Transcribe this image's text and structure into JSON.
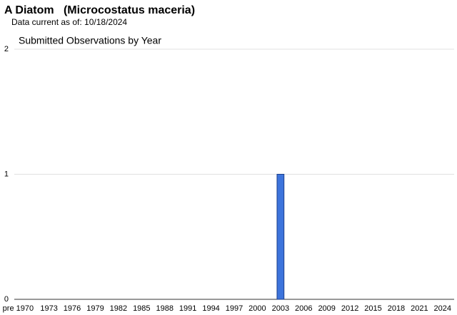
{
  "chart_data": {
    "type": "bar",
    "title": "A Diatom   (Microcostatus maceria)",
    "subtitle": "Data current as of: 10/18/2024",
    "chart_title": "Submitted Observations by Year",
    "categories": [
      "pre 1970",
      null,
      null,
      null,
      "1973",
      null,
      null,
      "1976",
      null,
      null,
      "1979",
      null,
      null,
      "1982",
      null,
      null,
      "1985",
      null,
      null,
      "1988",
      null,
      null,
      "1991",
      null,
      null,
      "1994",
      null,
      null,
      "1997",
      null,
      null,
      "2000",
      null,
      null,
      "2003",
      null,
      null,
      "2006",
      null,
      null,
      "2009",
      null,
      null,
      "2012",
      null,
      null,
      "2015",
      null,
      null,
      "2018",
      null,
      null,
      "2021",
      null,
      null,
      "2024",
      null
    ],
    "values": [
      0,
      0,
      0,
      0,
      0,
      0,
      0,
      0,
      0,
      0,
      0,
      0,
      0,
      0,
      0,
      0,
      0,
      0,
      0,
      0,
      0,
      0,
      0,
      0,
      0,
      0,
      0,
      0,
      0,
      0,
      0,
      0,
      0,
      0,
      1,
      0,
      0,
      0,
      0,
      0,
      0,
      0,
      0,
      0,
      0,
      0,
      0,
      0,
      0,
      0,
      0,
      0,
      0,
      0,
      0,
      0,
      0
    ],
    "color": "#3d74dc",
    "ylim": [
      0,
      2
    ],
    "yticks": [
      0,
      1,
      2
    ],
    "grid": true
  }
}
